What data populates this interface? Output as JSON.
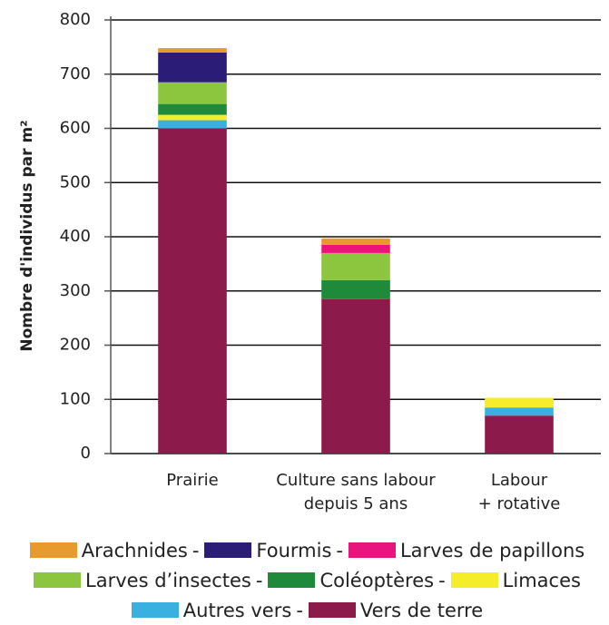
{
  "chart_data": {
    "type": "stacked_bar",
    "y_label": "Nombre d'individus par m²",
    "categories": [
      "Prairie",
      [
        "Culture sans labour",
        "depuis 5 ans"
      ],
      [
        "Labour",
        "+ rotative"
      ]
    ],
    "ylim": [
      0,
      800
    ],
    "yticks": [
      0,
      100,
      200,
      300,
      400,
      500,
      600,
      700,
      800
    ],
    "grid": true,
    "legend_separator": "-",
    "series": [
      {
        "name": "Arachnides",
        "color": "#e89a2c",
        "values": [
          8,
          12,
          0
        ]
      },
      {
        "name": "Fourmis",
        "color": "#2b1c78",
        "values": [
          55,
          0,
          0
        ]
      },
      {
        "name": "Larves de papillons",
        "color": "#e8157f",
        "values": [
          0,
          15,
          0
        ]
      },
      {
        "name": "Larves d’insectes",
        "color": "#8cc63f",
        "values": [
          40,
          50,
          0
        ]
      },
      {
        "name": "Coléoptères",
        "color": "#1e8a3a",
        "values": [
          20,
          35,
          0
        ]
      },
      {
        "name": "Limaces",
        "color": "#f5ec2a",
        "values": [
          10,
          0,
          18
        ]
      },
      {
        "name": "Autres vers",
        "color": "#3ab0e0",
        "values": [
          15,
          0,
          15
        ]
      },
      {
        "name": "Vers de terre",
        "color": "#8c1a4a",
        "values": [
          600,
          285,
          70
        ]
      }
    ]
  }
}
